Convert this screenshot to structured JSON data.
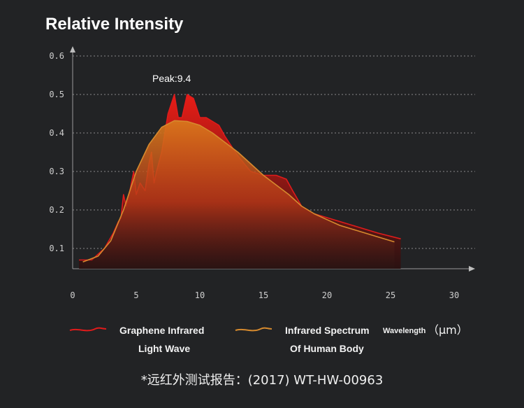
{
  "chart_data": {
    "type": "area",
    "title": "Relative Intensity",
    "annotation": "Peak:9.4",
    "xlim": [
      0,
      30
    ],
    "ylim": [
      0.05,
      0.6
    ],
    "x_ticks": [
      "0",
      "5",
      "10",
      "15",
      "20",
      "25",
      "30"
    ],
    "x_tick_values": [
      0,
      5,
      10,
      15,
      20,
      25,
      30
    ],
    "y_ticks": [
      "0.1",
      "0.2",
      "0.3",
      "0.4",
      "0.5",
      "0.6"
    ],
    "y_tick_values": [
      0.1,
      0.2,
      0.3,
      0.4,
      0.5,
      0.6
    ],
    "grid": true,
    "series": [
      {
        "name_lines": [
          "Graphene Infrared",
          "Light Wave"
        ],
        "color": "#e01b1b",
        "points": [
          [
            0.5,
            0.07
          ],
          [
            1.5,
            0.07
          ],
          [
            2.5,
            0.1
          ],
          [
            3.2,
            0.14
          ],
          [
            3.6,
            0.17
          ],
          [
            3.8,
            0.18
          ],
          [
            4.0,
            0.24
          ],
          [
            4.2,
            0.21
          ],
          [
            4.5,
            0.25
          ],
          [
            4.8,
            0.3
          ],
          [
            5.0,
            0.24
          ],
          [
            5.3,
            0.27
          ],
          [
            5.7,
            0.25
          ],
          [
            6.0,
            0.32
          ],
          [
            6.2,
            0.35
          ],
          [
            6.4,
            0.27
          ],
          [
            6.6,
            0.3
          ],
          [
            7.0,
            0.35
          ],
          [
            7.5,
            0.45
          ],
          [
            8.0,
            0.5
          ],
          [
            8.3,
            0.44
          ],
          [
            8.6,
            0.44
          ],
          [
            9.0,
            0.5
          ],
          [
            9.5,
            0.49
          ],
          [
            10.0,
            0.44
          ],
          [
            10.5,
            0.44
          ],
          [
            11.0,
            0.43
          ],
          [
            11.5,
            0.42
          ],
          [
            12.0,
            0.39
          ],
          [
            13.0,
            0.34
          ],
          [
            14.0,
            0.3
          ],
          [
            15.0,
            0.29
          ],
          [
            16.0,
            0.29
          ],
          [
            16.8,
            0.28
          ],
          [
            17.3,
            0.25
          ],
          [
            18.0,
            0.21
          ],
          [
            19.0,
            0.19
          ],
          [
            20.0,
            0.18
          ],
          [
            22.0,
            0.16
          ],
          [
            24.0,
            0.14
          ],
          [
            25.8,
            0.125
          ]
        ]
      },
      {
        "name_lines": [
          "Infrared Spectrum",
          "Of Human Body"
        ],
        "color": "#d68a2e",
        "points": [
          [
            0.8,
            0.065
          ],
          [
            2.0,
            0.08
          ],
          [
            3.0,
            0.12
          ],
          [
            4.0,
            0.2
          ],
          [
            5.0,
            0.3
          ],
          [
            6.0,
            0.37
          ],
          [
            7.0,
            0.415
          ],
          [
            8.0,
            0.432
          ],
          [
            9.0,
            0.43
          ],
          [
            10.0,
            0.42
          ],
          [
            11.0,
            0.4
          ],
          [
            12.0,
            0.375
          ],
          [
            13.0,
            0.35
          ],
          [
            14.0,
            0.32
          ],
          [
            15.0,
            0.29
          ],
          [
            16.0,
            0.265
          ],
          [
            17.0,
            0.24
          ],
          [
            18.0,
            0.21
          ],
          [
            19.0,
            0.19
          ],
          [
            20.0,
            0.175
          ],
          [
            21.0,
            0.16
          ],
          [
            22.0,
            0.15
          ],
          [
            23.0,
            0.14
          ],
          [
            24.0,
            0.13
          ],
          [
            25.3,
            0.117
          ]
        ]
      }
    ],
    "unit_small": "Wavelength",
    "unit_big": "（μm）"
  },
  "footnote": "*远红外测试报告：(2017) WT-HW-00963"
}
